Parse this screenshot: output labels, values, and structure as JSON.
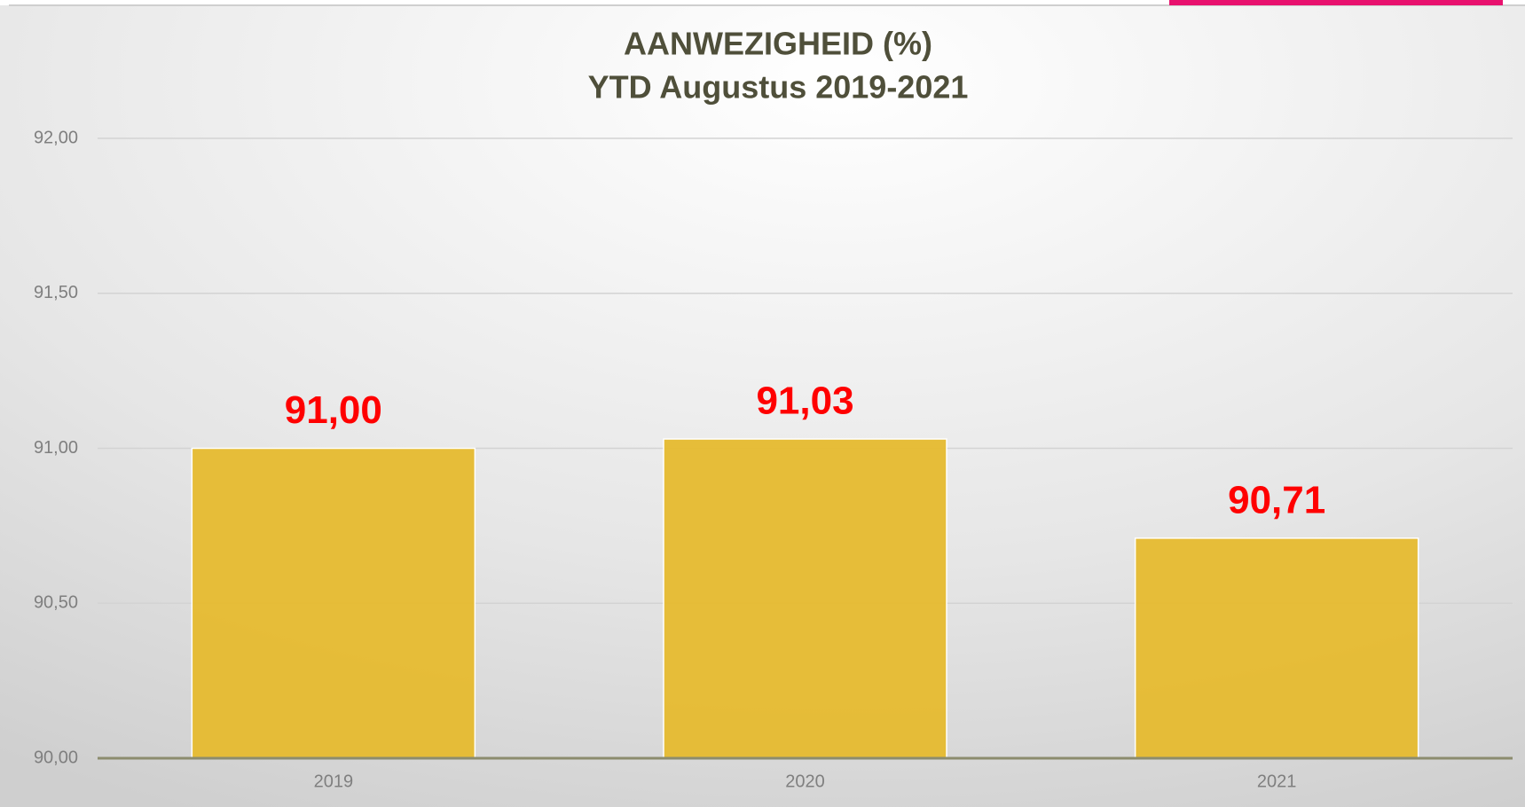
{
  "chart_data": {
    "type": "bar",
    "title": "AANWEZIGHEID (%)",
    "subtitle": "YTD Augustus 2019-2021",
    "categories": [
      "2019",
      "2020",
      "2021"
    ],
    "values": [
      91.0,
      91.03,
      90.71
    ],
    "value_labels": [
      "91,00",
      "91,03",
      "90,71"
    ],
    "color": "#e6bb2f",
    "label_color": "#ff0000",
    "ylim": [
      90,
      92
    ],
    "yticks": [
      {
        "value": 90,
        "label": "90,00"
      },
      {
        "value": 90.5,
        "label": "90,50"
      },
      {
        "value": 91,
        "label": "91,00"
      },
      {
        "value": 91.5,
        "label": "91,50"
      },
      {
        "value": 92,
        "label": "92,00"
      }
    ],
    "grid": true
  }
}
